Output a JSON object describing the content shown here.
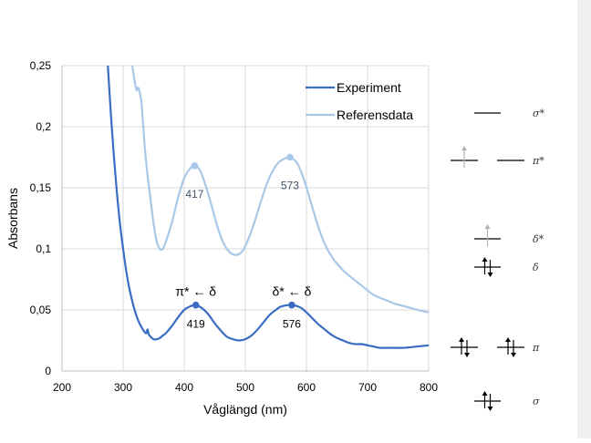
{
  "colors": {
    "experiment": "#3a6cc1",
    "reference": "#a9c8e8",
    "grid": "#d9d9d9",
    "axis": "#bfbfbf",
    "panel": "#efefef",
    "electron_solid": "#000000",
    "electron_faded": "#b3b3b3"
  },
  "chart_data": {
    "type": "line",
    "title": "",
    "xlabel": "Våglängd (nm)",
    "ylabel": "Absorbans",
    "xlim": [
      200,
      800
    ],
    "ylim": [
      0,
      0.25
    ],
    "xticks": [
      "200",
      "300",
      "400",
      "500",
      "600",
      "700",
      "800"
    ],
    "yticks": [
      "0",
      "0,05",
      "0,1",
      "0,15",
      "0,2",
      "0,25"
    ],
    "grid": true,
    "legend_position": "top-right",
    "legend": [
      "Experiment",
      "Referensdata"
    ],
    "series": [
      {
        "name": "Experiment",
        "color": "#3a6cc1",
        "points": [
          [
            275,
            0.25
          ],
          [
            280,
            0.21
          ],
          [
            285,
            0.175
          ],
          [
            290,
            0.145
          ],
          [
            295,
            0.12
          ],
          [
            300,
            0.1
          ],
          [
            305,
            0.082
          ],
          [
            310,
            0.068
          ],
          [
            315,
            0.057
          ],
          [
            320,
            0.048
          ],
          [
            325,
            0.041
          ],
          [
            330,
            0.036
          ],
          [
            335,
            0.032
          ],
          [
            338,
            0.031
          ],
          [
            340,
            0.034
          ],
          [
            342,
            0.03
          ],
          [
            345,
            0.028
          ],
          [
            350,
            0.026
          ],
          [
            355,
            0.026
          ],
          [
            360,
            0.027
          ],
          [
            365,
            0.029
          ],
          [
            370,
            0.031
          ],
          [
            380,
            0.037
          ],
          [
            390,
            0.044
          ],
          [
            400,
            0.05
          ],
          [
            410,
            0.053
          ],
          [
            419,
            0.054
          ],
          [
            430,
            0.051
          ],
          [
            440,
            0.046
          ],
          [
            450,
            0.039
          ],
          [
            460,
            0.033
          ],
          [
            470,
            0.028
          ],
          [
            480,
            0.026
          ],
          [
            490,
            0.025
          ],
          [
            500,
            0.026
          ],
          [
            510,
            0.029
          ],
          [
            520,
            0.034
          ],
          [
            530,
            0.04
          ],
          [
            540,
            0.046
          ],
          [
            550,
            0.05
          ],
          [
            560,
            0.053
          ],
          [
            576,
            0.054
          ],
          [
            590,
            0.052
          ],
          [
            600,
            0.048
          ],
          [
            610,
            0.043
          ],
          [
            620,
            0.038
          ],
          [
            630,
            0.034
          ],
          [
            640,
            0.03
          ],
          [
            650,
            0.027
          ],
          [
            660,
            0.025
          ],
          [
            670,
            0.023
          ],
          [
            680,
            0.022
          ],
          [
            690,
            0.022
          ],
          [
            700,
            0.021
          ],
          [
            710,
            0.02
          ],
          [
            720,
            0.019
          ],
          [
            740,
            0.019
          ],
          [
            760,
            0.019
          ],
          [
            780,
            0.02
          ],
          [
            800,
            0.021
          ]
        ],
        "peaks": [
          {
            "x": 419,
            "y": 0.054,
            "label": "419",
            "transition": "π* ← δ"
          },
          {
            "x": 576,
            "y": 0.054,
            "label": "576",
            "transition": "δ* ← δ"
          }
        ]
      },
      {
        "name": "Referensdata",
        "color": "#a9c8e8",
        "points": [
          [
            315,
            0.25
          ],
          [
            318,
            0.24
          ],
          [
            322,
            0.23
          ],
          [
            325,
            0.232
          ],
          [
            328,
            0.226
          ],
          [
            330,
            0.22
          ],
          [
            333,
            0.2
          ],
          [
            336,
            0.18
          ],
          [
            340,
            0.16
          ],
          [
            345,
            0.14
          ],
          [
            350,
            0.12
          ],
          [
            355,
            0.106
          ],
          [
            360,
            0.1
          ],
          [
            365,
            0.1
          ],
          [
            370,
            0.106
          ],
          [
            380,
            0.122
          ],
          [
            390,
            0.142
          ],
          [
            400,
            0.158
          ],
          [
            410,
            0.166
          ],
          [
            417,
            0.168
          ],
          [
            425,
            0.165
          ],
          [
            435,
            0.152
          ],
          [
            445,
            0.135
          ],
          [
            455,
            0.117
          ],
          [
            465,
            0.104
          ],
          [
            475,
            0.097
          ],
          [
            485,
            0.095
          ],
          [
            495,
            0.098
          ],
          [
            505,
            0.108
          ],
          [
            515,
            0.122
          ],
          [
            525,
            0.138
          ],
          [
            535,
            0.153
          ],
          [
            545,
            0.164
          ],
          [
            555,
            0.171
          ],
          [
            565,
            0.174
          ],
          [
            573,
            0.175
          ],
          [
            585,
            0.17
          ],
          [
            595,
            0.158
          ],
          [
            605,
            0.142
          ],
          [
            615,
            0.125
          ],
          [
            625,
            0.11
          ],
          [
            635,
            0.099
          ],
          [
            645,
            0.091
          ],
          [
            655,
            0.085
          ],
          [
            665,
            0.08
          ],
          [
            675,
            0.076
          ],
          [
            685,
            0.072
          ],
          [
            695,
            0.068
          ],
          [
            705,
            0.064
          ],
          [
            715,
            0.061
          ],
          [
            725,
            0.059
          ],
          [
            735,
            0.057
          ],
          [
            745,
            0.055
          ],
          [
            760,
            0.053
          ],
          [
            775,
            0.051
          ],
          [
            790,
            0.049
          ],
          [
            800,
            0.048
          ]
        ],
        "peaks": [
          {
            "x": 417,
            "y": 0.168,
            "label": "417"
          },
          {
            "x": 573,
            "y": 0.175,
            "label": "573"
          }
        ]
      }
    ]
  },
  "mo_diagram": {
    "levels": [
      {
        "symbol": "σ*",
        "electrons": "none"
      },
      {
        "symbol": "π*",
        "electrons": "one-up-faded"
      },
      {
        "symbol": "δ*",
        "electrons": "one-up-faded"
      },
      {
        "symbol": "δ",
        "electrons": "pair"
      },
      {
        "symbol": "π",
        "electrons": "pair-degenerate"
      },
      {
        "symbol": "σ",
        "electrons": "pair"
      }
    ]
  }
}
